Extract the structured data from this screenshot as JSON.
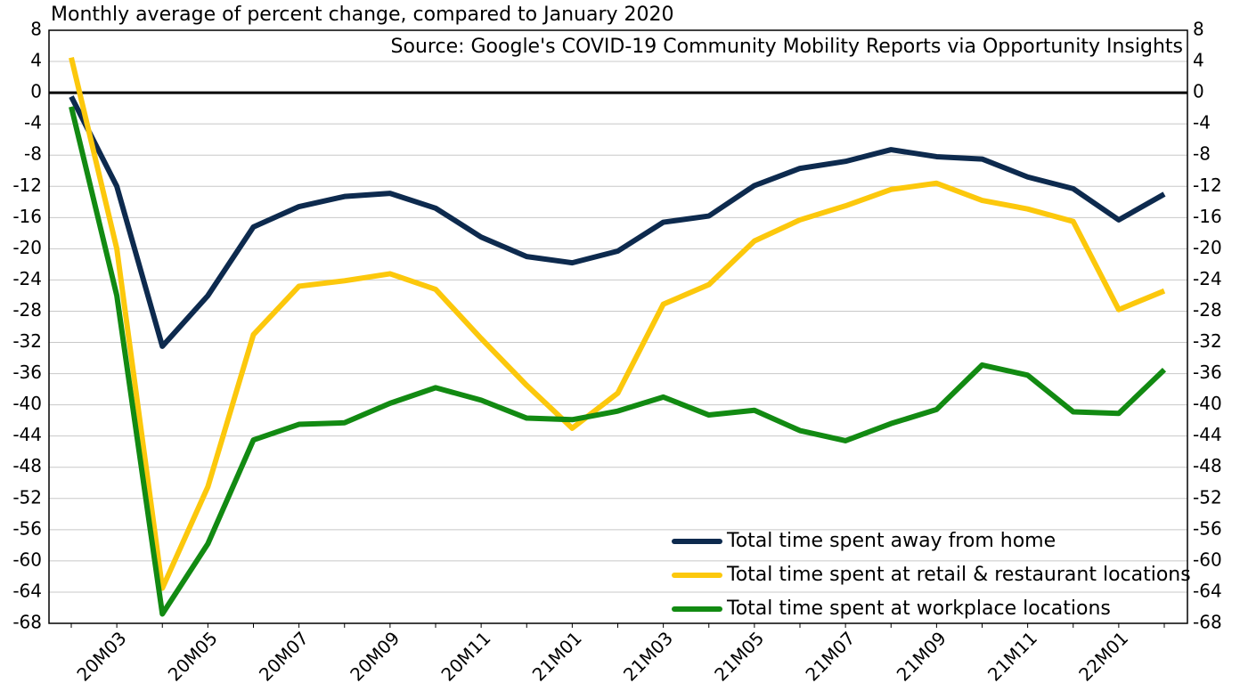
{
  "chart_data": {
    "type": "line",
    "title": "Monthly average of percent change, compared to January 2020",
    "annotation": "Source: Google's COVID-19 Community Mobility Reports via Opportunity Insights",
    "categories": [
      null,
      "20M03",
      null,
      "20M05",
      null,
      "20M07",
      null,
      "20M09",
      null,
      "20M11",
      null,
      "21M01",
      null,
      "21M03",
      null,
      "21M05",
      null,
      "21M07",
      null,
      "21M09",
      null,
      "21M11",
      null,
      "22M01",
      null
    ],
    "series": [
      {
        "name": "Total time spent away from home",
        "color": "#0d2a4e",
        "values": [
          -0.5,
          -12,
          -32.5,
          -26,
          -17.2,
          -14.6,
          -13.3,
          -12.9,
          -14.8,
          -18.5,
          -21,
          -21.8,
          -20.3,
          -16.6,
          -15.8,
          -11.9,
          -9.7,
          -8.8,
          -7.3,
          -8.2,
          -8.5,
          -10.8,
          -12.3,
          -16.3,
          -13
        ]
      },
      {
        "name": "Total time spent at retail & restaurant locations",
        "color": "#fcc80c",
        "values": [
          4.5,
          -20,
          -63.5,
          -50.5,
          -31,
          -24.8,
          -24.1,
          -23.2,
          -25.2,
          -31.5,
          -37.5,
          -43,
          -38.5,
          -27.1,
          -24.6,
          -19,
          -16.3,
          -14.5,
          -12.4,
          -11.6,
          -13.8,
          -14.9,
          -16.5,
          -27.8,
          -25.4
        ]
      },
      {
        "name": "Total time spent at workplace locations",
        "color": "#128a12",
        "values": [
          -1.8,
          -26,
          -66.8,
          -57.8,
          -44.5,
          -42.5,
          -42.3,
          -39.8,
          -37.8,
          -39.4,
          -41.7,
          -41.9,
          -40.8,
          -39,
          -41.3,
          -40.7,
          -43.3,
          -44.6,
          -42.4,
          -40.6,
          -34.9,
          -36.2,
          -40.9,
          -41.1,
          -35.5
        ]
      }
    ],
    "ylim": [
      -68,
      8
    ],
    "yticks": [
      8,
      4,
      0,
      -4,
      -8,
      -12,
      -16,
      -20,
      -24,
      -28,
      -32,
      -36,
      -40,
      -44,
      -48,
      -52,
      -56,
      -60,
      -64,
      -68
    ],
    "y2lim": [
      -68,
      8
    ],
    "y2ticks": [
      8,
      4,
      0,
      -4,
      -8,
      -12,
      -16,
      -20,
      -24,
      -28,
      -32,
      -36,
      -40,
      -44,
      -48,
      -52,
      -56,
      -60,
      -64,
      -68
    ],
    "grid": true,
    "legend": "lower right"
  }
}
